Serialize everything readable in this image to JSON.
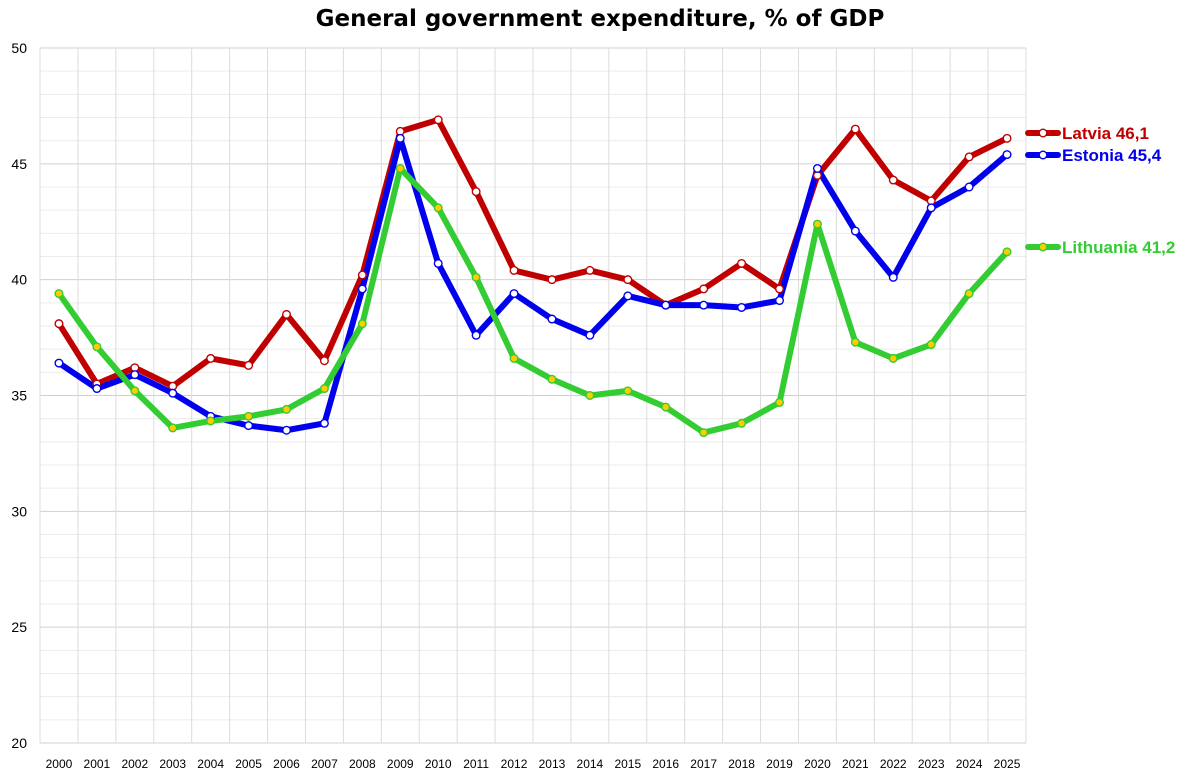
{
  "chart_data": {
    "type": "line",
    "title": "General government expenditure, % of GDP",
    "x": [
      "2000",
      "2001",
      "2002",
      "2003",
      "2004",
      "2005",
      "2006",
      "2007",
      "2008",
      "2009",
      "2010",
      "2011",
      "2012",
      "2013",
      "2014",
      "2015",
      "2016",
      "2017",
      "2018",
      "2019",
      "2020",
      "2021",
      "2022",
      "2023",
      "2024",
      "2025"
    ],
    "ylim": [
      20,
      50
    ],
    "yticks": [
      20,
      25,
      30,
      35,
      40,
      45,
      50
    ],
    "grid": true,
    "legend": "right, end of lines",
    "series": [
      {
        "name": "Latvia",
        "label": "Latvia 46,1",
        "color": "#c00000",
        "marker_fill": "#ffffff",
        "values": [
          38.1,
          35.5,
          36.2,
          35.4,
          36.6,
          36.3,
          38.5,
          36.5,
          40.2,
          46.4,
          46.9,
          43.8,
          40.4,
          40.0,
          40.4,
          40.0,
          38.9,
          39.6,
          40.7,
          39.6,
          44.5,
          46.5,
          44.3,
          43.4,
          45.3,
          46.1
        ]
      },
      {
        "name": "Estonia",
        "label": "Estonia 45,4",
        "color": "#0000ee",
        "marker_fill": "#ffffff",
        "values": [
          36.4,
          35.3,
          35.9,
          35.1,
          34.1,
          33.7,
          33.5,
          33.8,
          39.6,
          46.1,
          40.7,
          37.6,
          39.4,
          38.3,
          37.6,
          39.3,
          38.9,
          38.9,
          38.8,
          39.1,
          44.8,
          42.1,
          40.1,
          43.1,
          44.0,
          45.4
        ]
      },
      {
        "name": "Lithuania",
        "label": "Lithuania 41,2",
        "color": "#33cc33",
        "marker_fill": "#ffcc00",
        "values": [
          39.4,
          37.1,
          35.2,
          33.6,
          33.9,
          34.1,
          34.4,
          35.3,
          38.1,
          44.8,
          43.1,
          40.1,
          36.6,
          35.7,
          35.0,
          35.2,
          34.5,
          33.4,
          33.8,
          34.7,
          42.4,
          37.3,
          36.6,
          37.2,
          39.4,
          41.2
        ]
      }
    ]
  }
}
